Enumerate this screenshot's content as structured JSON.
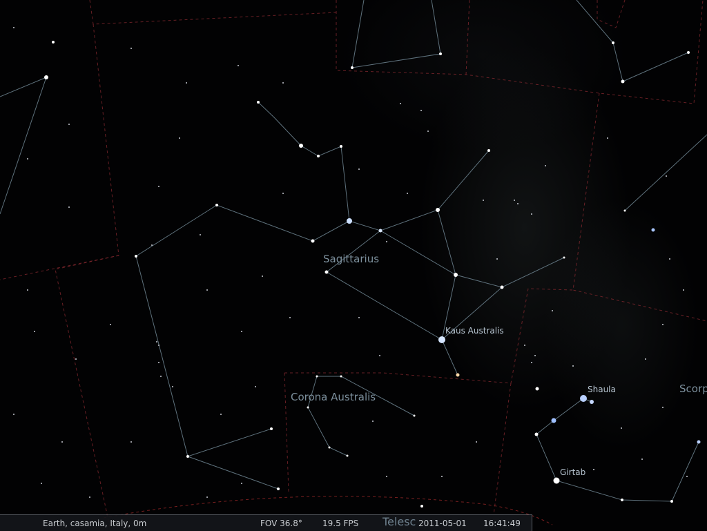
{
  "sky": {
    "constellation_labels": [
      {
        "id": "sagittarius",
        "text": "Sagittarius"
      },
      {
        "id": "corona-australis",
        "text": "Corona Australis"
      },
      {
        "id": "scorpius",
        "text": "Scorp"
      }
    ],
    "star_labels": [
      {
        "id": "kaus-australis",
        "text": "Kaus Australis"
      },
      {
        "id": "shaula",
        "text": "Shaula"
      },
      {
        "id": "girtab",
        "text": "Girtab"
      }
    ]
  },
  "overlay": {
    "telescope_label": "Telesc"
  },
  "statusbar": {
    "location": "Earth, casamia, Italy, 0m",
    "fov": "FOV 36.8°",
    "fps": "19.5 FPS",
    "date": "2011-05-01",
    "time": "16:41:49"
  },
  "colors": {
    "constellation_line": "#6f8592",
    "boundary": "#8a2a30",
    "label": "#7c8f9c"
  }
}
